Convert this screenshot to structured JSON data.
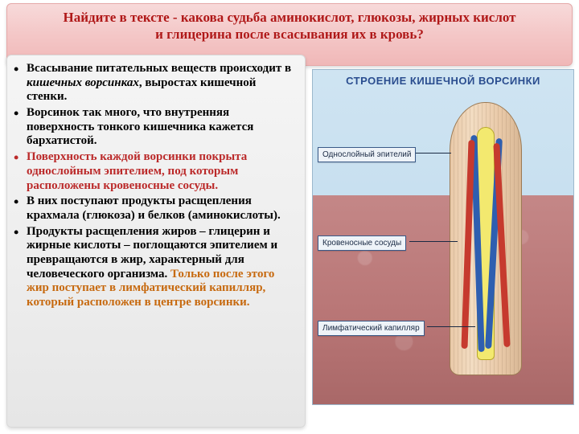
{
  "header": {
    "line1": "Найдите в тексте  - какова судьба аминокислот, глюкозы, жирных кислот",
    "line2": "и глицерина после всасывания их в кровь?"
  },
  "bullets": [
    {
      "red_bullet": false,
      "fragments": [
        {
          "text": "Всасывание питательных веществ происходит в ",
          "style": "plain"
        },
        {
          "text": "кишечных ворсинках",
          "style": "em"
        },
        {
          "text": ", выростах кишечной стенки.",
          "style": "plain"
        }
      ]
    },
    {
      "red_bullet": false,
      "fragments": [
        {
          "text": "Ворсинок так много, что внутренняя поверхность тонкого кишечника кажется бархатистой.",
          "style": "plain"
        }
      ]
    },
    {
      "red_bullet": true,
      "fragments": [
        {
          "text": "Поверхность каждой ворсинки покрыта однослойным эпителием, под которым расположены кровеносные сосуды.",
          "style": "red"
        }
      ]
    },
    {
      "red_bullet": false,
      "fragments": [
        {
          "text": " В них поступают продукты расщепления крахмала (глюкоза) и белков (аминокислоты).",
          "style": "plain"
        }
      ]
    },
    {
      "red_bullet": false,
      "fragments": [
        {
          "text": " Продукты расщепления жиров – глицерин и жирные кислоты – поглощаются эпителием и превращаются в жир, характерный для человеческого организма. ",
          "style": "plain"
        },
        {
          "text": "Только после этого жир поступает в лимфатический капилляр, который расположен в центре ворсинки.",
          "style": "orange"
        }
      ]
    }
  ],
  "diagram": {
    "title": "СТРОЕНИЕ КИШЕЧНОЙ ВОРСИНКИ",
    "labels": {
      "epithelium": "Однослойный эпителий",
      "blood": "Кровеносные сосуды",
      "lymph": "Лимфатический капилляр"
    },
    "colors": {
      "sky": "#cfe4f2",
      "tissue": "#b87575",
      "villus_fill": "#e9c9a8",
      "lymph_fill": "#f3e96f",
      "artery": "#c63a2e",
      "vein": "#2e5fb0",
      "label_bg": "#eef3f8",
      "label_border": "#3a5a88",
      "title_color": "#2a4d8f"
    }
  }
}
